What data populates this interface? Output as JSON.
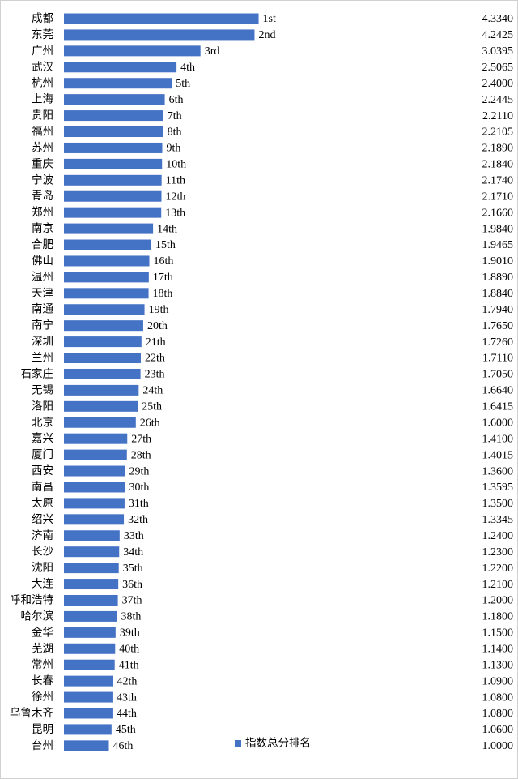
{
  "chart_data": {
    "type": "hbar",
    "xlim": [
      0,
      10
    ],
    "categories": [
      "成都",
      "东莞",
      "广州",
      "武汉",
      "杭州",
      "上海",
      "贵阳",
      "福州",
      "苏州",
      "重庆",
      "宁波",
      "青岛",
      "郑州",
      "南京",
      "合肥",
      "佛山",
      "温州",
      "天津",
      "南通",
      "南宁",
      "深圳",
      "兰州",
      "石家庄",
      "无锡",
      "洛阳",
      "北京",
      "嘉兴",
      "厦门",
      "西安",
      "南昌",
      "太原",
      "绍兴",
      "济南",
      "长沙",
      "沈阳",
      "大连",
      "呼和浩特",
      "哈尔滨",
      "金华",
      "芜湖",
      "常州",
      "长春",
      "徐州",
      "乌鲁木齐",
      "昆明",
      "台州"
    ],
    "series": [
      {
        "name": "指数总分排名",
        "color": "#4472c4",
        "values": [
          4.334,
          4.2425,
          3.0395,
          2.5065,
          2.4,
          2.2445,
          2.211,
          2.2105,
          2.189,
          2.184,
          2.174,
          2.171,
          2.166,
          1.984,
          1.9465,
          1.901,
          1.889,
          1.884,
          1.794,
          1.765,
          1.726,
          1.711,
          1.705,
          1.664,
          1.6415,
          1.6,
          1.41,
          1.4015,
          1.36,
          1.3595,
          1.35,
          1.3345,
          1.24,
          1.23,
          1.22,
          1.21,
          1.2,
          1.18,
          1.15,
          1.14,
          1.13,
          1.09,
          1.08,
          1.08,
          1.06,
          1
        ],
        "value_labels": [
          "4.3340",
          "4.2425",
          "3.0395",
          "2.5065",
          "2.4000",
          "2.2445",
          "2.2110",
          "2.2105",
          "2.1890",
          "2.1840",
          "2.1740",
          "2.1710",
          "2.1660",
          "1.9840",
          "1.9465",
          "1.9010",
          "1.8890",
          "1.8840",
          "1.7940",
          "1.7650",
          "1.7260",
          "1.7110",
          "1.7050",
          "1.6640",
          "1.6415",
          "1.6000",
          "1.4100",
          "1.4015",
          "1.3600",
          "1.3595",
          "1.3500",
          "1.3345",
          "1.2400",
          "1.2300",
          "1.2200",
          "1.2100",
          "1.2000",
          "1.1800",
          "1.1500",
          "1.1400",
          "1.1300",
          "1.0900",
          "1.0800",
          "1.0800",
          "1.0600",
          "1.0000"
        ],
        "rank_labels": [
          "1st",
          "2nd",
          "3rd",
          "4th",
          "5th",
          "6th",
          "7th",
          "8th",
          "9th",
          "10th",
          "11th",
          "12th",
          "13th",
          "14th",
          "15th",
          "16th",
          "17th",
          "18th",
          "19th",
          "20th",
          "21th",
          "22th",
          "23th",
          "24th",
          "25th",
          "26th",
          "27th",
          "28th",
          "29th",
          "30th",
          "31th",
          "32th",
          "33th",
          "34th",
          "35th",
          "36th",
          "37th",
          "38th",
          "39th",
          "40th",
          "41th",
          "42th",
          "43th",
          "44th",
          "45th",
          "46th"
        ]
      }
    ]
  }
}
